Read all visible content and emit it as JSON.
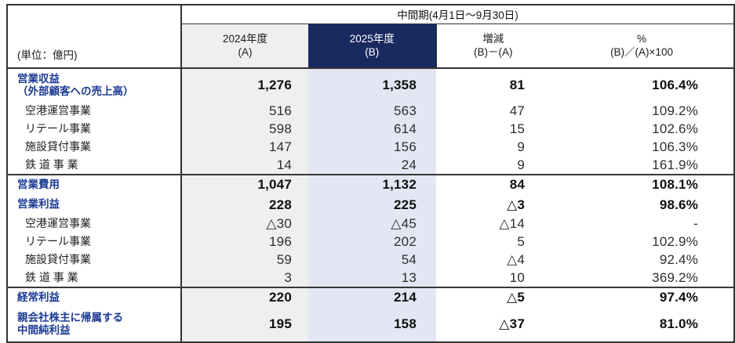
{
  "table": {
    "unit_label": "(単位：億円)",
    "period_header": "中間期(4月1日～9月30日)",
    "columns": [
      {
        "line1": "2024年度",
        "line2": "(A)"
      },
      {
        "line1": "2025年度",
        "line2": "(B)"
      },
      {
        "line1": "増減",
        "line2": "(B)－(A)"
      },
      {
        "line1": "%",
        "line2": "(B)／(A)×100"
      }
    ],
    "rows": [
      {
        "label": "営業収益",
        "label2": "（外部顧客への売上高）",
        "type": "section",
        "values": [
          "1,276",
          "1,358",
          "81",
          "106.4%"
        ]
      },
      {
        "label": "空港運営事業",
        "type": "sub",
        "values": [
          "516",
          "563",
          "47",
          "109.2%"
        ]
      },
      {
        "label": "リテール事業",
        "type": "sub",
        "values": [
          "598",
          "614",
          "15",
          "102.6%"
        ]
      },
      {
        "label": "施設貸付事業",
        "type": "sub",
        "values": [
          "147",
          "156",
          "9",
          "106.3%"
        ]
      },
      {
        "label": "鉄 道 事 業",
        "type": "sub",
        "values": [
          "14",
          "24",
          "9",
          "161.9%"
        ],
        "divider_after": true
      },
      {
        "label": "営業費用",
        "type": "section",
        "values": [
          "1,047",
          "1,132",
          "84",
          "108.1%"
        ]
      },
      {
        "label": "営業利益",
        "type": "section",
        "values": [
          "228",
          "225",
          "△3",
          "98.6%"
        ]
      },
      {
        "label": "空港運営事業",
        "type": "sub",
        "values": [
          "△30",
          "△45",
          "△14",
          "-"
        ]
      },
      {
        "label": "リテール事業",
        "type": "sub",
        "values": [
          "196",
          "202",
          "5",
          "102.9%"
        ]
      },
      {
        "label": "施設貸付事業",
        "type": "sub",
        "values": [
          "59",
          "54",
          "△4",
          "92.4%"
        ]
      },
      {
        "label": "鉄 道 事 業",
        "type": "sub",
        "values": [
          "3",
          "13",
          "10",
          "369.2%"
        ],
        "divider_after": true
      },
      {
        "label": "経常利益",
        "type": "section",
        "values": [
          "220",
          "214",
          "△5",
          "97.4%"
        ]
      },
      {
        "label": "親会社株主に帰属する",
        "label2": "中間純利益",
        "type": "section",
        "values": [
          "195",
          "158",
          "△37",
          "81.0%"
        ]
      }
    ],
    "colors": {
      "navy": "#192a60",
      "col_2024_bg": "#efefef",
      "col_2025_bg": "#e3e7f4",
      "label_blue": "#1c3a94",
      "border_dark": "#333333"
    }
  }
}
